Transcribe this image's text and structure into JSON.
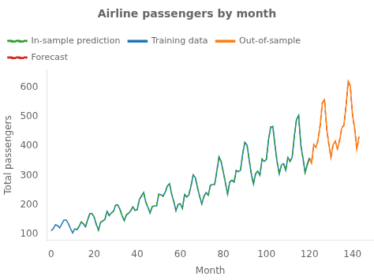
{
  "chart_data": {
    "type": "line",
    "title": "Airline passengers by month",
    "xlabel": "Month",
    "ylabel": "Total passengers",
    "xlim": [
      -2,
      150
    ],
    "ylim": [
      80,
      660
    ],
    "xticks": [
      0,
      20,
      40,
      60,
      80,
      100,
      120,
      140
    ],
    "yticks": [
      100,
      200,
      300,
      400,
      500,
      600
    ],
    "grid": false,
    "legend": "upper left",
    "x": [
      0,
      1,
      2,
      3,
      4,
      5,
      6,
      7,
      8,
      9,
      10,
      11,
      12,
      13,
      14,
      15,
      16,
      17,
      18,
      19,
      20,
      21,
      22,
      23,
      24,
      25,
      26,
      27,
      28,
      29,
      30,
      31,
      32,
      33,
      34,
      35,
      36,
      37,
      38,
      39,
      40,
      41,
      42,
      43,
      44,
      45,
      46,
      47,
      48,
      49,
      50,
      51,
      52,
      53,
      54,
      55,
      56,
      57,
      58,
      59,
      60,
      61,
      62,
      63,
      64,
      65,
      66,
      67,
      68,
      69,
      70,
      71,
      72,
      73,
      74,
      75,
      76,
      77,
      78,
      79,
      80,
      81,
      82,
      83,
      84,
      85,
      86,
      87,
      88,
      89,
      90,
      91,
      92,
      93,
      94,
      95,
      96,
      97,
      98,
      99,
      100,
      101,
      102,
      103,
      104,
      105,
      106,
      107,
      108,
      109,
      110,
      111,
      112,
      113,
      114,
      115,
      116,
      117,
      118,
      119,
      120,
      121,
      122,
      123,
      124,
      125,
      126,
      127,
      128,
      129,
      130,
      131,
      132,
      133,
      134,
      135,
      136,
      137,
      138,
      139,
      140,
      141,
      142,
      143
    ],
    "series": [
      {
        "name": "In-sample prediction",
        "color": "#2ca02c",
        "line_style": "dashed",
        "values": [
          null,
          null,
          null,
          null,
          null,
          null,
          null,
          null,
          null,
          null,
          null,
          null,
          115,
          126,
          141,
          135,
          125,
          149,
          170,
          170,
          158,
          133,
          114,
          140,
          145,
          150,
          178,
          163,
          172,
          178,
          199,
          199,
          184,
          162,
          146,
          166,
          171,
          180,
          193,
          181,
          183,
          218,
          230,
          242,
          209,
          191,
          172,
          194,
          196,
          196,
          236,
          235,
          229,
          243,
          264,
          272,
          237,
          211,
          180,
          201,
          204,
          188,
          235,
          227,
          234,
          264,
          302,
          293,
          259,
          229,
          203,
          229,
          242,
          233,
          267,
          269,
          270,
          315,
          364,
          347,
          312,
          274,
          237,
          278,
          284,
          277,
          317,
          313,
          318,
          374,
          413,
          405,
          355,
          306,
          271,
          306,
          315,
          301,
          356,
          348,
          355,
          422,
          465,
          467,
          404,
          347,
          305,
          336,
          340,
          318,
          362,
          348,
          363,
          435,
          491,
          505,
          404,
          359,
          310,
          337,
          360,
          null,
          null,
          null,
          null,
          null,
          null,
          null,
          null,
          null,
          null,
          null,
          null,
          null,
          null,
          null,
          null,
          null,
          null,
          null,
          null,
          null,
          null,
          null
        ]
      },
      {
        "name": "Training data",
        "color": "#1f77b4",
        "line_style": "solid",
        "values": [
          112,
          118,
          132,
          129,
          121,
          135,
          148,
          148,
          136,
          119,
          104,
          118,
          115,
          126,
          141,
          135,
          125,
          149,
          170,
          170,
          158,
          133,
          114,
          140,
          145,
          150,
          178,
          163,
          172,
          178,
          199,
          199,
          184,
          162,
          146,
          166,
          171,
          180,
          193,
          181,
          183,
          218,
          230,
          242,
          209,
          191,
          172,
          194,
          196,
          196,
          236,
          235,
          229,
          243,
          264,
          272,
          237,
          211,
          180,
          201,
          204,
          188,
          235,
          227,
          234,
          264,
          302,
          293,
          259,
          229,
          203,
          229,
          242,
          233,
          267,
          269,
          270,
          315,
          364,
          347,
          312,
          274,
          237,
          278,
          284,
          277,
          317,
          313,
          318,
          374,
          413,
          405,
          355,
          306,
          271,
          306,
          315,
          301,
          356,
          348,
          355,
          422,
          465,
          467,
          404,
          347,
          305,
          336,
          340,
          318,
          362,
          348,
          363,
          435,
          491,
          505,
          404,
          359,
          310,
          337,
          360,
          null,
          null,
          null,
          null,
          null,
          null,
          null,
          null,
          null,
          null,
          null,
          null,
          null,
          null,
          null,
          null,
          null,
          null,
          null,
          null,
          null,
          null,
          null
        ]
      },
      {
        "name": "Out-of-sample",
        "color": "#ff7f0e",
        "line_style": "solid",
        "values": [
          null,
          null,
          null,
          null,
          null,
          null,
          null,
          null,
          null,
          null,
          null,
          null,
          null,
          null,
          null,
          null,
          null,
          null,
          null,
          null,
          null,
          null,
          null,
          null,
          null,
          null,
          null,
          null,
          null,
          null,
          null,
          null,
          null,
          null,
          null,
          null,
          null,
          null,
          null,
          null,
          null,
          null,
          null,
          null,
          null,
          null,
          null,
          null,
          null,
          null,
          null,
          null,
          null,
          null,
          null,
          null,
          null,
          null,
          null,
          null,
          null,
          null,
          null,
          null,
          null,
          null,
          null,
          null,
          null,
          null,
          null,
          null,
          null,
          null,
          null,
          null,
          null,
          null,
          null,
          null,
          null,
          null,
          null,
          null,
          null,
          null,
          null,
          null,
          null,
          null,
          null,
          null,
          null,
          null,
          null,
          null,
          null,
          null,
          null,
          null,
          null,
          null,
          null,
          null,
          null,
          null,
          null,
          null,
          null,
          null,
          null,
          null,
          null,
          null,
          null,
          null,
          null,
          null,
          null,
          null,
          360,
          342,
          406,
          396,
          420,
          472,
          548,
          559,
          463,
          407,
          362,
          405,
          417,
          391,
          419,
          461,
          472,
          535,
          622,
          606,
          508,
          461,
          390,
          432
        ]
      },
      {
        "name": "Forecast",
        "color": "#d62728",
        "line_style": "dashed",
        "values": [
          null,
          null,
          null,
          null,
          null,
          null,
          null,
          null,
          null,
          null,
          null,
          null,
          null,
          null,
          null,
          null,
          null,
          null,
          null,
          null,
          null,
          null,
          null,
          null,
          null,
          null,
          null,
          null,
          null,
          null,
          null,
          null,
          null,
          null,
          null,
          null,
          null,
          null,
          null,
          null,
          null,
          null,
          null,
          null,
          null,
          null,
          null,
          null,
          null,
          null,
          null,
          null,
          null,
          null,
          null,
          null,
          null,
          null,
          null,
          null,
          null,
          null,
          null,
          null,
          null,
          null,
          null,
          null,
          null,
          null,
          null,
          null,
          null,
          null,
          null,
          null,
          null,
          null,
          null,
          null,
          null,
          null,
          null,
          null,
          null,
          null,
          null,
          null,
          null,
          null,
          null,
          null,
          null,
          null,
          null,
          null,
          null,
          null,
          null,
          null,
          null,
          null,
          null,
          null,
          null,
          null,
          null,
          null,
          null,
          null,
          null,
          null,
          null,
          null,
          null,
          null,
          null,
          null,
          null,
          337,
          360,
          342,
          406,
          396,
          420,
          472,
          548,
          559,
          463,
          407,
          362,
          405,
          417,
          391,
          419,
          461,
          472,
          535,
          622,
          606,
          508,
          461,
          390,
          432
        ]
      }
    ]
  }
}
